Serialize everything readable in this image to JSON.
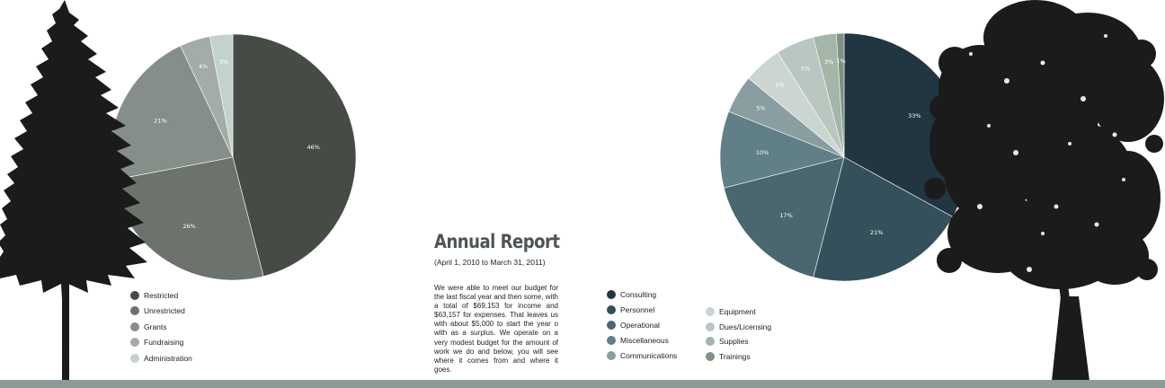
{
  "report": {
    "title": "Annual Report",
    "subtitle": "(April 1, 2010 to March 31, 2011)",
    "body": "We were able to meet our budget for the last fiscal year and then some, with a total of $69,153 for income and $63,157 for expenses. That leaves us with about $5,000 to start the year o with as a surplus. We operate on a very modest budget for the amount of work we do and below, you will see where it comes from and where it goes."
  },
  "colors": {
    "tree": "#1b1b1b",
    "ground": "#8e9a94",
    "label_text": "#ffffff"
  },
  "chart_data": [
    {
      "type": "pie",
      "categories": [
        "Restricted",
        "Unrestricted",
        "Grants",
        "Fundraising",
        "Administration"
      ],
      "values": [
        46,
        26,
        21,
        4,
        3
      ],
      "labels": [
        "46%",
        "26%",
        "21%",
        "4%",
        "3%"
      ],
      "colors": [
        "#474b46",
        "#6c736d",
        "#868e89",
        "#a4aca7",
        "#c3d2cd"
      ],
      "legend": "bottom-left"
    },
    {
      "type": "pie",
      "categories": [
        "Consulting",
        "Personnel",
        "Operational",
        "Miscellaneous",
        "Communications",
        "Equipment",
        "Dues/Licensing",
        "Supplies",
        "Trainings"
      ],
      "values": [
        33,
        21,
        17,
        10,
        5,
        5,
        5,
        3,
        1
      ],
      "labels": [
        "33%",
        "21%",
        "17%",
        "10%",
        "5%",
        "5%",
        "5%",
        "3%",
        "1%"
      ],
      "colors": [
        "#213640",
        "#34505a",
        "#4a6770",
        "#617f87",
        "#8a9ea2",
        "#cbd6d2",
        "#bac7c0",
        "#a3b6a8",
        "#7f9180"
      ],
      "legend": "bottom-left"
    }
  ]
}
